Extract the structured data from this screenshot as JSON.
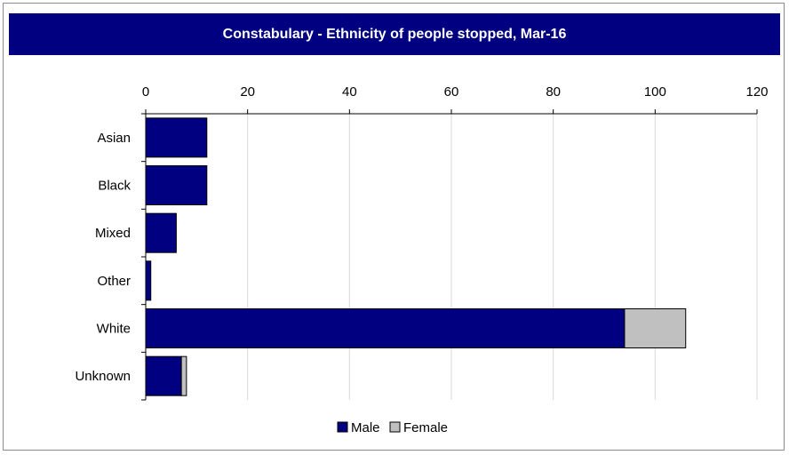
{
  "chart_data": {
    "type": "bar",
    "orientation": "horizontal",
    "stacked": true,
    "title": "Constabulary - Ethnicity of people stopped, Mar-16",
    "categories": [
      "Asian",
      "Black",
      "Mixed",
      "Other",
      "White",
      "Unknown"
    ],
    "series": [
      {
        "name": "Male",
        "values": [
          12,
          12,
          6,
          1,
          94,
          7
        ],
        "color": "#000080"
      },
      {
        "name": "Female",
        "values": [
          0,
          0,
          0,
          0,
          12,
          1
        ],
        "color": "#c0c0c0"
      }
    ],
    "xlim": [
      0,
      120
    ],
    "xticks": [
      0,
      20,
      40,
      60,
      80,
      100,
      120
    ],
    "x_axis_position": "top",
    "grid": true,
    "legend": "bottom"
  }
}
